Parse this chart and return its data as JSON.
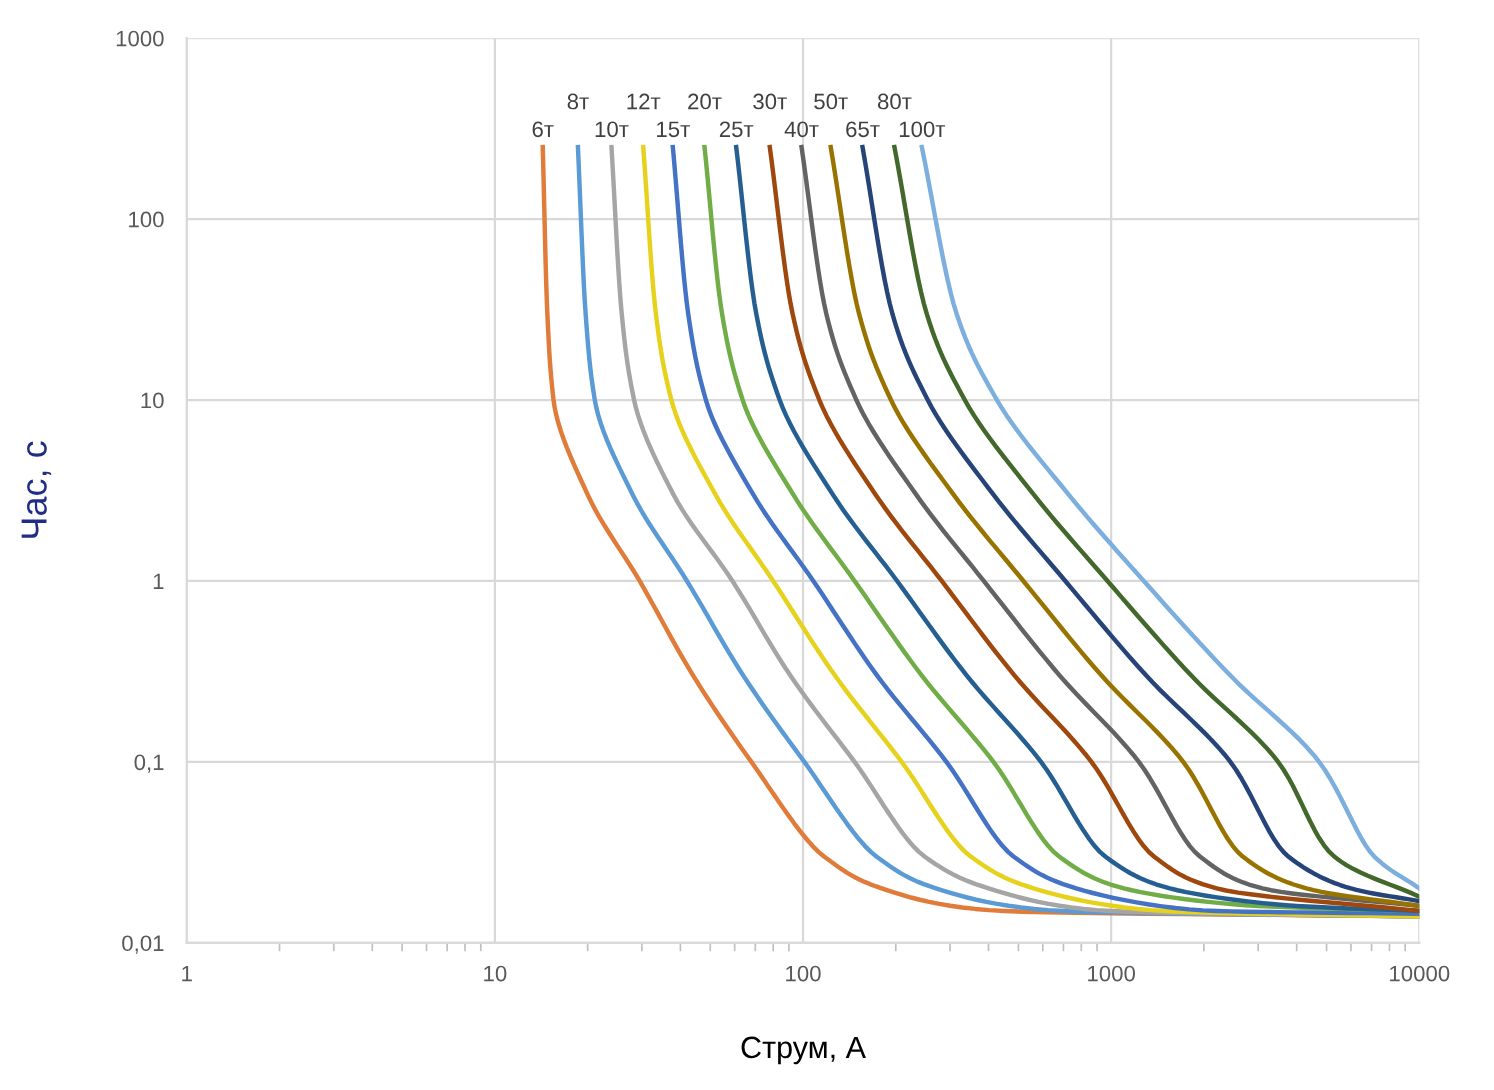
{
  "chart_data": {
    "type": "line",
    "xlabel": "Струм, А",
    "ylabel": "Час, с",
    "log": "xy",
    "grid": true,
    "legend": false,
    "marker": "none",
    "line_style": "solid",
    "xlim": [
      1,
      10000
    ],
    "ylim": [
      0.01,
      1000
    ],
    "xticks": [
      1,
      10,
      100,
      1000,
      10000
    ],
    "yticks": [
      {
        "value": 0.01,
        "label": "0,01"
      },
      {
        "value": 0.1,
        "label": "0,1"
      },
      1,
      10,
      100,
      1000
    ],
    "series": [
      {
        "name": "6т",
        "color": "#e07b39",
        "x": [
          14.3,
          14.8,
          15.5,
          20,
          29.5,
          44,
          68,
          117,
          180,
          450,
          10000
        ],
        "values": [
          250,
          30,
          10,
          3,
          1,
          0.3,
          0.1,
          0.03,
          0.02,
          0.015,
          0.014
        ]
      },
      {
        "name": "8т",
        "color": "#5b9bd5",
        "x": [
          18.6,
          19.7,
          21.1,
          28,
          42,
          64,
          101,
          173,
          270,
          700,
          10000
        ],
        "values": [
          250,
          30,
          10,
          3,
          1,
          0.3,
          0.1,
          0.03,
          0.02,
          0.015,
          0.014
        ]
      },
      {
        "name": "10т",
        "color": "#a5a5a5",
        "x": [
          23.9,
          25.8,
          28.3,
          38,
          59,
          91,
          147,
          248,
          400,
          1000,
          10000
        ],
        "values": [
          250,
          30,
          10,
          3,
          1,
          0.3,
          0.1,
          0.03,
          0.02,
          0.015,
          0.014
        ]
      },
      {
        "name": "12т",
        "color": "#e6d21c",
        "x": [
          30.3,
          33.3,
          37.4,
          52,
          80,
          127,
          209,
          350,
          560,
          1500,
          10000
        ],
        "values": [
          250,
          30,
          10,
          3,
          1,
          0.3,
          0.1,
          0.03,
          0.02,
          0.015,
          0.014
        ]
      },
      {
        "name": "15т",
        "color": "#4472c4",
        "x": [
          37.8,
          42.4,
          48.4,
          69,
          108,
          174,
          292,
          482,
          770,
          2200,
          10000
        ],
        "values": [
          250,
          30,
          10,
          3,
          1,
          0.3,
          0.1,
          0.03,
          0.02,
          0.015,
          0.0145
        ]
      },
      {
        "name": "20т",
        "color": "#70ad47",
        "x": [
          47.9,
          54.6,
          63.7,
          93,
          147,
          243,
          415,
          678,
          1100,
          3000,
          10000
        ],
        "values": [
          250,
          30,
          10,
          3,
          1,
          0.3,
          0.1,
          0.03,
          0.02,
          0.016,
          0.015
        ]
      },
      {
        "name": "25т",
        "color": "#255e91",
        "x": [
          60.7,
          70.5,
          84,
          125,
          202,
          340,
          592,
          957,
          1550,
          4000,
          10000
        ],
        "values": [
          250,
          30,
          10,
          3,
          1,
          0.3,
          0.1,
          0.03,
          0.02,
          0.016,
          0.015
        ]
      },
      {
        "name": "30т",
        "color": "#9e480e",
        "x": [
          78,
          92.5,
          113,
          172,
          282,
          486,
          863,
          1377,
          2200,
          10000
        ],
        "values": [
          250,
          30,
          10,
          3,
          1,
          0.3,
          0.1,
          0.03,
          0.02,
          0.015
        ]
      },
      {
        "name": "40т",
        "color": "#636363",
        "x": [
          98.9,
          119,
          149,
          233,
          386,
          681,
          1230,
          1941,
          3100,
          10000
        ],
        "values": [
          250,
          30,
          10,
          3,
          1,
          0.3,
          0.1,
          0.03,
          0.02,
          0.016
        ]
      },
      {
        "name": "50т",
        "color": "#997300",
        "x": [
          123,
          152,
          193,
          308,
          519,
          931,
          1714,
          2673,
          4300,
          10000
        ],
        "values": [
          250,
          30,
          10,
          3,
          1,
          0.3,
          0.1,
          0.03,
          0.02,
          0.016
        ]
      },
      {
        "name": "65т",
        "color": "#264478",
        "x": [
          156,
          195,
          254,
          415,
          710,
          1300,
          2438,
          3758,
          6000,
          10000
        ],
        "values": [
          250,
          30,
          10,
          3,
          1,
          0.3,
          0.1,
          0.03,
          0.02,
          0.017
        ]
      },
      {
        "name": "80т",
        "color": "#43682b",
        "x": [
          198,
          252,
          335,
          561,
          973,
          1820,
          3483,
          5297,
          10000
        ],
        "values": [
          250,
          30,
          10,
          3,
          1,
          0.3,
          0.1,
          0.03,
          0.018
        ]
      },
      {
        "name": "100т",
        "color": "#7cafdd",
        "x": [
          243,
          315,
          426,
          728,
          1276,
          2438,
          4732,
          7145,
          10000
        ],
        "values": [
          250,
          30,
          10,
          3,
          1,
          0.3,
          0.1,
          0.03,
          0.02
        ]
      }
    ]
  }
}
